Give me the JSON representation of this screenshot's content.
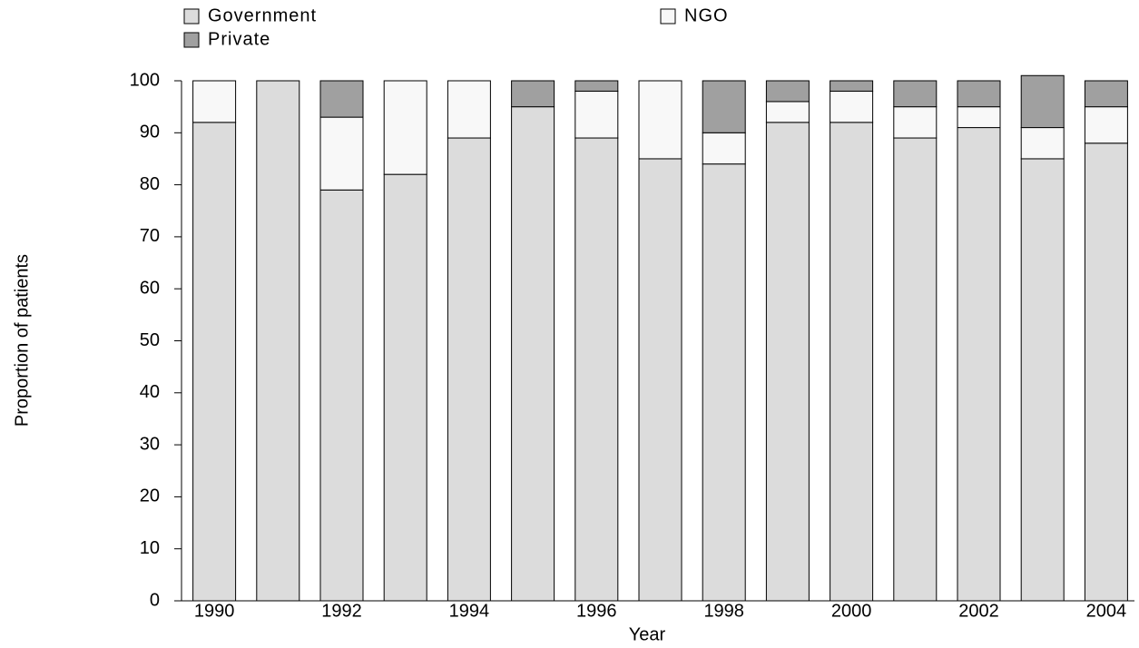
{
  "chart_data": {
    "type": "stacked_bar",
    "x_label": "Year",
    "y_label": "Proportion of patients",
    "categories": [
      "1990",
      null,
      "1992",
      null,
      "1994",
      null,
      "1996",
      null,
      "1998",
      null,
      "2000",
      null,
      "2002",
      null,
      "2004"
    ],
    "series": [
      {
        "name": "Government",
        "color": "#dcdcdc",
        "values": [
          92,
          100,
          79,
          82,
          89,
          95,
          89,
          85,
          84,
          92,
          92,
          89,
          91,
          85,
          88
        ]
      },
      {
        "name": "NGO",
        "color": "#f8f8f8",
        "values": [
          8,
          0,
          14,
          18,
          11,
          0,
          9,
          15,
          6,
          4,
          6,
          6,
          4,
          6,
          7
        ]
      },
      {
        "name": "Private",
        "color": "#a0a0a0",
        "values": [
          0,
          0,
          7,
          0,
          0,
          5,
          2,
          0,
          10,
          4,
          2,
          5,
          5,
          10,
          5
        ]
      }
    ],
    "ylim": [
      0,
      100
    ],
    "yticks": [
      0,
      10,
      20,
      30,
      40,
      50,
      60,
      70,
      80,
      90,
      100
    ],
    "grid": false
  }
}
